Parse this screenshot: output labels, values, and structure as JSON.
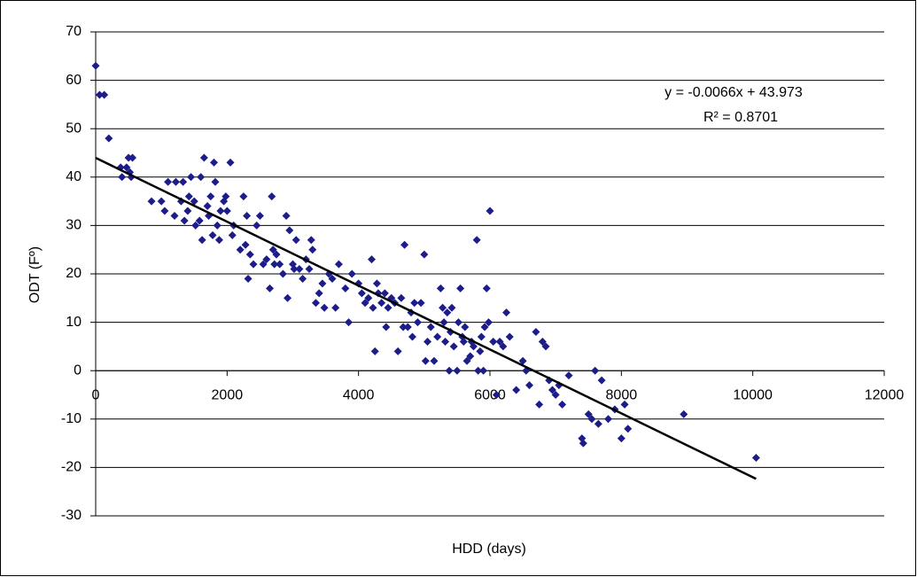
{
  "chart_data": {
    "type": "scatter",
    "x_label": "HDD (days)",
    "y_label": "ODT (Fº)",
    "xlim": [
      0,
      12000
    ],
    "xticks": [
      0,
      2000,
      4000,
      6000,
      8000,
      10000,
      12000
    ],
    "ylim": [
      -30,
      70
    ],
    "yticks": [
      -30,
      -20,
      -10,
      0,
      10,
      20,
      30,
      40,
      50,
      60,
      70
    ],
    "grid": true,
    "color": "#1c1c8a",
    "trendline": {
      "slope": -0.0066,
      "intercept": 43.973,
      "label": "y = -0.0066x + 43.973",
      "r2_label": "R² = 0.8701",
      "color": "#000000"
    },
    "x": [
      0,
      60,
      130,
      200,
      380,
      400,
      470,
      500,
      520,
      540,
      560,
      850,
      1000,
      1050,
      1100,
      1200,
      1220,
      1300,
      1330,
      1350,
      1400,
      1420,
      1450,
      1500,
      1520,
      1580,
      1600,
      1620,
      1650,
      1700,
      1720,
      1750,
      1780,
      1800,
      1820,
      1850,
      1880,
      1900,
      1950,
      1980,
      2000,
      2050,
      2080,
      2100,
      2200,
      2250,
      2280,
      2300,
      2320,
      2350,
      2400,
      2450,
      2500,
      2550,
      2600,
      2650,
      2680,
      2700,
      2720,
      2750,
      2800,
      2850,
      2900,
      2920,
      2950,
      3000,
      3020,
      3050,
      3100,
      3150,
      3200,
      3250,
      3280,
      3300,
      3350,
      3400,
      3450,
      3480,
      3550,
      3600,
      3650,
      3700,
      3800,
      3850,
      3900,
      4000,
      4050,
      4100,
      4150,
      4200,
      4220,
      4250,
      4280,
      4300,
      4350,
      4400,
      4420,
      4450,
      4500,
      4550,
      4600,
      4650,
      4680,
      4700,
      4750,
      4800,
      4820,
      4850,
      4900,
      4950,
      5000,
      5020,
      5050,
      5100,
      5150,
      5200,
      5250,
      5280,
      5300,
      5320,
      5350,
      5380,
      5400,
      5420,
      5450,
      5500,
      5520,
      5550,
      5580,
      5600,
      5620,
      5650,
      5700,
      5720,
      5750,
      5800,
      5820,
      5850,
      5870,
      5900,
      5920,
      5950,
      5980,
      6000,
      6050,
      6100,
      6150,
      6200,
      6250,
      6300,
      6400,
      6500,
      6550,
      6600,
      6700,
      6750,
      6800,
      6850,
      6900,
      6950,
      7000,
      7050,
      7100,
      7200,
      7400,
      7420,
      7500,
      7550,
      7600,
      7650,
      7700,
      7800,
      7900,
      8000,
      8050,
      8100,
      8950,
      10050
    ],
    "values": [
      63,
      57,
      57,
      48,
      42,
      40,
      42,
      44,
      41,
      40,
      44,
      35,
      35,
      33,
      39,
      32,
      39,
      35,
      39,
      31,
      33,
      36,
      40,
      35,
      30,
      31,
      40,
      27,
      44,
      34,
      32,
      36,
      28,
      43,
      39,
      30,
      27,
      33,
      35,
      36,
      33,
      43,
      28,
      30,
      25,
      36,
      26,
      32,
      19,
      24,
      22,
      30,
      32,
      22,
      23,
      17,
      36,
      25,
      22,
      24,
      22,
      20,
      32,
      15,
      29,
      22,
      21,
      27,
      21,
      19,
      23,
      21,
      27,
      25,
      14,
      16,
      18,
      13,
      20,
      19,
      13,
      22,
      17,
      10,
      20,
      18,
      16,
      14,
      15,
      23,
      13,
      4,
      18,
      16,
      14,
      16,
      9,
      13,
      15,
      14,
      4,
      15,
      9,
      26,
      9,
      12,
      7,
      14,
      10,
      14,
      24,
      2,
      6,
      9,
      2,
      7,
      17,
      13,
      10,
      6,
      12,
      0,
      8,
      13,
      5,
      0,
      10,
      17,
      7,
      6,
      9,
      2,
      3,
      6,
      5,
      27,
      0,
      4,
      7,
      0,
      9,
      17,
      10,
      33,
      6,
      -5,
      6,
      5,
      12,
      7,
      -4,
      2,
      0,
      -3,
      8,
      -7,
      6,
      5,
      -2,
      -4,
      -5,
      -3,
      -7,
      -1,
      -14,
      -15,
      -9,
      -10,
      0,
      -11,
      -2,
      -10,
      -8,
      -14,
      -7,
      -12,
      -9,
      -18
    ]
  }
}
